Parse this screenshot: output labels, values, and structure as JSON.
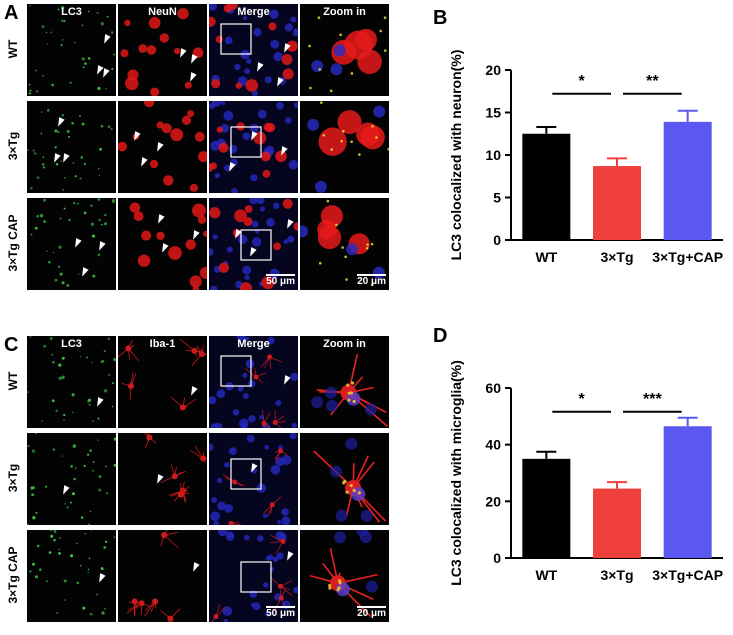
{
  "panels": {
    "A": {
      "letter": "A",
      "columns": [
        "LC3",
        "NeuN",
        "Merge",
        "Zoom in"
      ],
      "rows": [
        "WT",
        "3×Tg",
        "3×Tg CAP"
      ],
      "scale_merge": "50 μm",
      "scale_zoom": "20 μm"
    },
    "C": {
      "letter": "C",
      "columns": [
        "LC3",
        "Iba-1",
        "Merge",
        "Zoom in"
      ],
      "rows": [
        "WT",
        "3×Tg",
        "3×Tg CAP"
      ],
      "scale_merge": "50 μm",
      "scale_zoom": "20 μm"
    }
  },
  "chart_data": [
    {
      "panel_letter": "B",
      "type": "bar",
      "categories": [
        "WT",
        "3×Tg",
        "3×Tg+CAP"
      ],
      "values": [
        12.5,
        8.7,
        13.9
      ],
      "errors": [
        0.8,
        0.9,
        1.3
      ],
      "colors": [
        "#000000",
        "#f0403c",
        "#5a58f0"
      ],
      "ylabel": "LC3 colocalized with neuron(%)",
      "ylim": [
        0,
        20
      ],
      "yticks": [
        0,
        5,
        10,
        15,
        20
      ],
      "significance": [
        {
          "from": 0,
          "to": 1,
          "label": "*"
        },
        {
          "from": 1,
          "to": 2,
          "label": "**"
        }
      ]
    },
    {
      "panel_letter": "D",
      "type": "bar",
      "categories": [
        "WT",
        "3×Tg",
        "3×Tg+CAP"
      ],
      "values": [
        35,
        24.5,
        46.5
      ],
      "errors": [
        2.5,
        2.3,
        3.0
      ],
      "colors": [
        "#000000",
        "#f0403c",
        "#5a58f0"
      ],
      "ylabel": "LC3 colocalized with microglia(%)",
      "ylim": [
        0,
        60
      ],
      "yticks": [
        0,
        20,
        40,
        60
      ],
      "significance": [
        {
          "from": 0,
          "to": 1,
          "label": "*"
        },
        {
          "from": 1,
          "to": 2,
          "label": "***"
        }
      ]
    }
  ]
}
